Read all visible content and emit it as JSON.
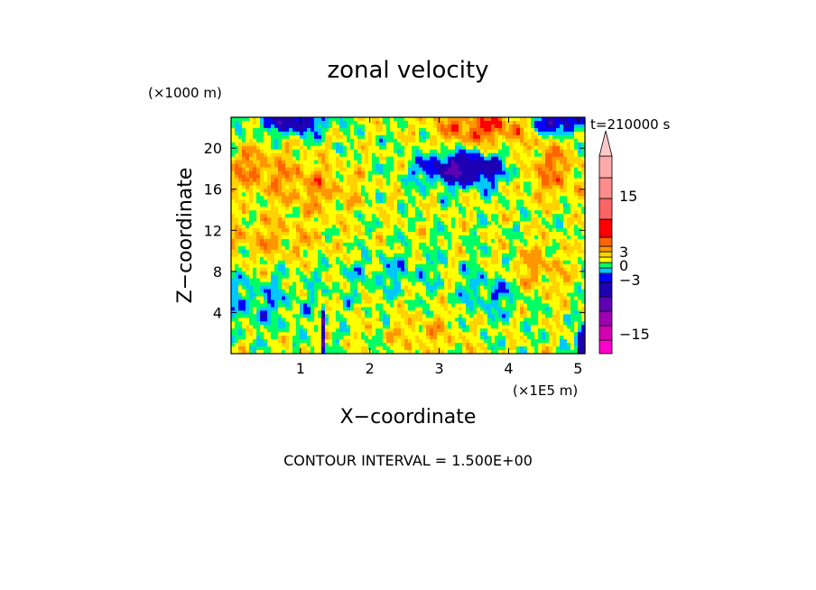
{
  "chart_data": {
    "type": "heatmap",
    "title": "zonal velocity",
    "xlabel": "X−coordinate",
    "ylabel": "Z−coordinate",
    "x_units": "(×1E5 m)",
    "y_units": "(×1000 m)",
    "time_label": "t=210000 s",
    "footer": "CONTOUR INTERVAL = 1.500E+00",
    "xlim": [
      0,
      5.1
    ],
    "ylim": [
      0,
      23
    ],
    "x_ticks": [
      "1",
      "2",
      "3",
      "4",
      "5"
    ],
    "y_ticks": [
      "4",
      "8",
      "12",
      "16",
      "20"
    ],
    "colorbar_ticks": [
      "15",
      "3",
      "0",
      "−3",
      "−15"
    ],
    "contour_interval": 1.5,
    "color_levels": [
      {
        "max": -16.5,
        "color": "#ff00cc"
      },
      {
        "max": -13.5,
        "color": "#d400b4"
      },
      {
        "max": -10.5,
        "color": "#a000b4"
      },
      {
        "max": -7.5,
        "color": "#6000b4"
      },
      {
        "max": -4.5,
        "color": "#1e00b4"
      },
      {
        "max": -3.0,
        "color": "#0000ff"
      },
      {
        "max": -1.5,
        "color": "#00c8ff"
      },
      {
        "max": 0.0,
        "color": "#00ff64"
      },
      {
        "max": 1.5,
        "color": "#ffff00"
      },
      {
        "max": 3.0,
        "color": "#ffd200"
      },
      {
        "max": 4.5,
        "color": "#ff9600"
      },
      {
        "max": 6.0,
        "color": "#ff6400"
      },
      {
        "max": 9.0,
        "color": "#ff0000"
      },
      {
        "max": 12.0,
        "color": "#ff6464"
      },
      {
        "max": 15.0,
        "color": "#ff8c8c"
      },
      {
        "max": 18.0,
        "color": "#ffaaaa"
      },
      {
        "max": 999,
        "color": "#ffc8c8"
      }
    ],
    "colorbar_colors": [
      "#ff00cc",
      "#d400b4",
      "#a000b4",
      "#6000b4",
      "#1e00b4",
      "#0000ff",
      "#00c8ff",
      "#00ff64",
      "#ffff00",
      "#ffd200",
      "#ff9600",
      "#ff6400",
      "#ff0000",
      "#ff6464",
      "#ff8c8c",
      "#ffaaaa",
      "#ffc8c8"
    ]
  }
}
